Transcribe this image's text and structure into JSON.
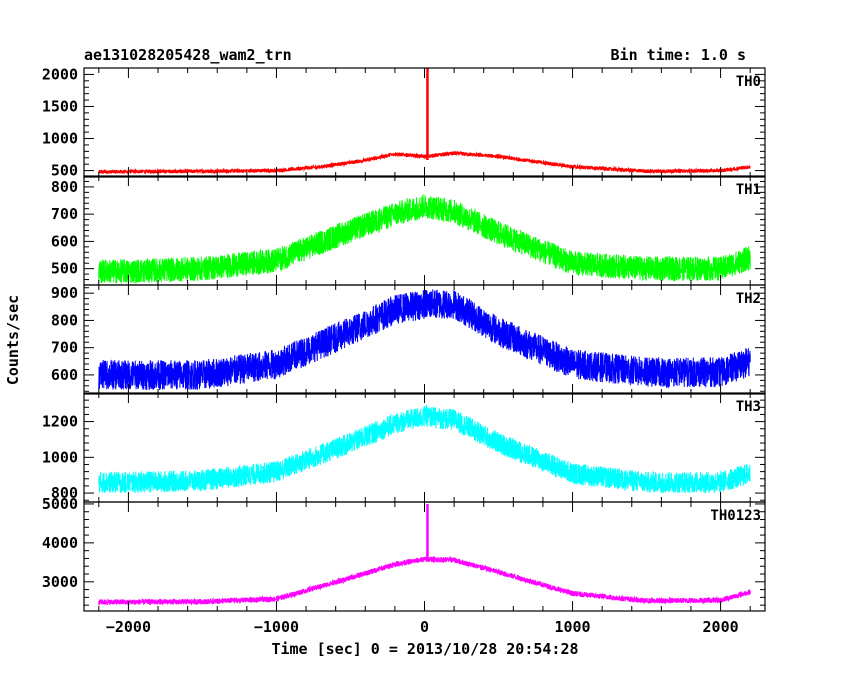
{
  "header": {
    "title": "ae131028205428_wam2_trn",
    "bin_time": "Bin time: 1.0 s"
  },
  "chart_data": {
    "type": "line",
    "xlabel": "Time [sec] 0 = 2013/10/28 20:54:28",
    "ylabel": "Counts/sec",
    "xlim": [
      -2300,
      2300
    ],
    "xticks": [
      -2000,
      -1000,
      0,
      1000,
      2000
    ],
    "panels": [
      {
        "name": "TH0",
        "color": "#ff0000",
        "ylim": [
          400,
          2100
        ],
        "yticks": [
          500,
          1000,
          1500,
          2000
        ],
        "base": 470,
        "peak": 760,
        "noise": 30,
        "spike": 2100,
        "x": [
          -2200,
          -2000,
          -1500,
          -1000,
          -700,
          -400,
          -200,
          0,
          20,
          200,
          500,
          1000,
          1500,
          2000,
          2200
        ],
        "values": [
          480,
          485,
          490,
          500,
          560,
          660,
          760,
          720,
          2100,
          770,
          720,
          560,
          490,
          500,
          560
        ]
      },
      {
        "name": "TH1",
        "color": "#00ff00",
        "ylim": [
          440,
          840
        ],
        "yticks": [
          500,
          600,
          700,
          800
        ],
        "base": 490,
        "peak": 720,
        "noise": 45,
        "x": [
          -2200,
          -2000,
          -1500,
          -1000,
          -500,
          -200,
          0,
          200,
          500,
          1000,
          1500,
          2000,
          2200
        ],
        "values": [
          490,
          490,
          500,
          530,
          640,
          700,
          730,
          710,
          630,
          520,
          500,
          500,
          540
        ]
      },
      {
        "name": "TH2",
        "color": "#0000ff",
        "ylim": [
          530,
          930
        ],
        "yticks": [
          600,
          700,
          800,
          900
        ],
        "base": 600,
        "peak": 860,
        "noise": 55,
        "x": [
          -2200,
          -2000,
          -1500,
          -1000,
          -500,
          -200,
          0,
          200,
          500,
          1000,
          1500,
          2000,
          2200
        ],
        "values": [
          600,
          600,
          600,
          640,
          760,
          840,
          860,
          860,
          760,
          640,
          610,
          610,
          650
        ]
      },
      {
        "name": "TH3",
        "color": "#00ffff",
        "ylim": [
          750,
          1360
        ],
        "yticks": [
          800,
          1000,
          1200
        ],
        "base": 860,
        "peak": 1230,
        "noise": 60,
        "x": [
          -2200,
          -2000,
          -1500,
          -1000,
          -500,
          -200,
          0,
          200,
          500,
          1000,
          1500,
          2000,
          2200
        ],
        "values": [
          860,
          860,
          870,
          920,
          1080,
          1190,
          1230,
          1210,
          1080,
          910,
          860,
          860,
          910
        ]
      },
      {
        "name": "TH0123",
        "color": "#ff00ff",
        "ylim": [
          2250,
          5050
        ],
        "yticks": [
          3000,
          4000,
          5000
        ],
        "base": 2500,
        "peak": 3600,
        "noise": 70,
        "spike": 5000,
        "x": [
          -2200,
          -2000,
          -1500,
          -1000,
          -500,
          -200,
          0,
          20,
          200,
          500,
          1000,
          1500,
          2000,
          2200
        ],
        "values": [
          2480,
          2480,
          2490,
          2560,
          3100,
          3450,
          3580,
          5000,
          3560,
          3250,
          2700,
          2510,
          2530,
          2740
        ]
      }
    ]
  }
}
